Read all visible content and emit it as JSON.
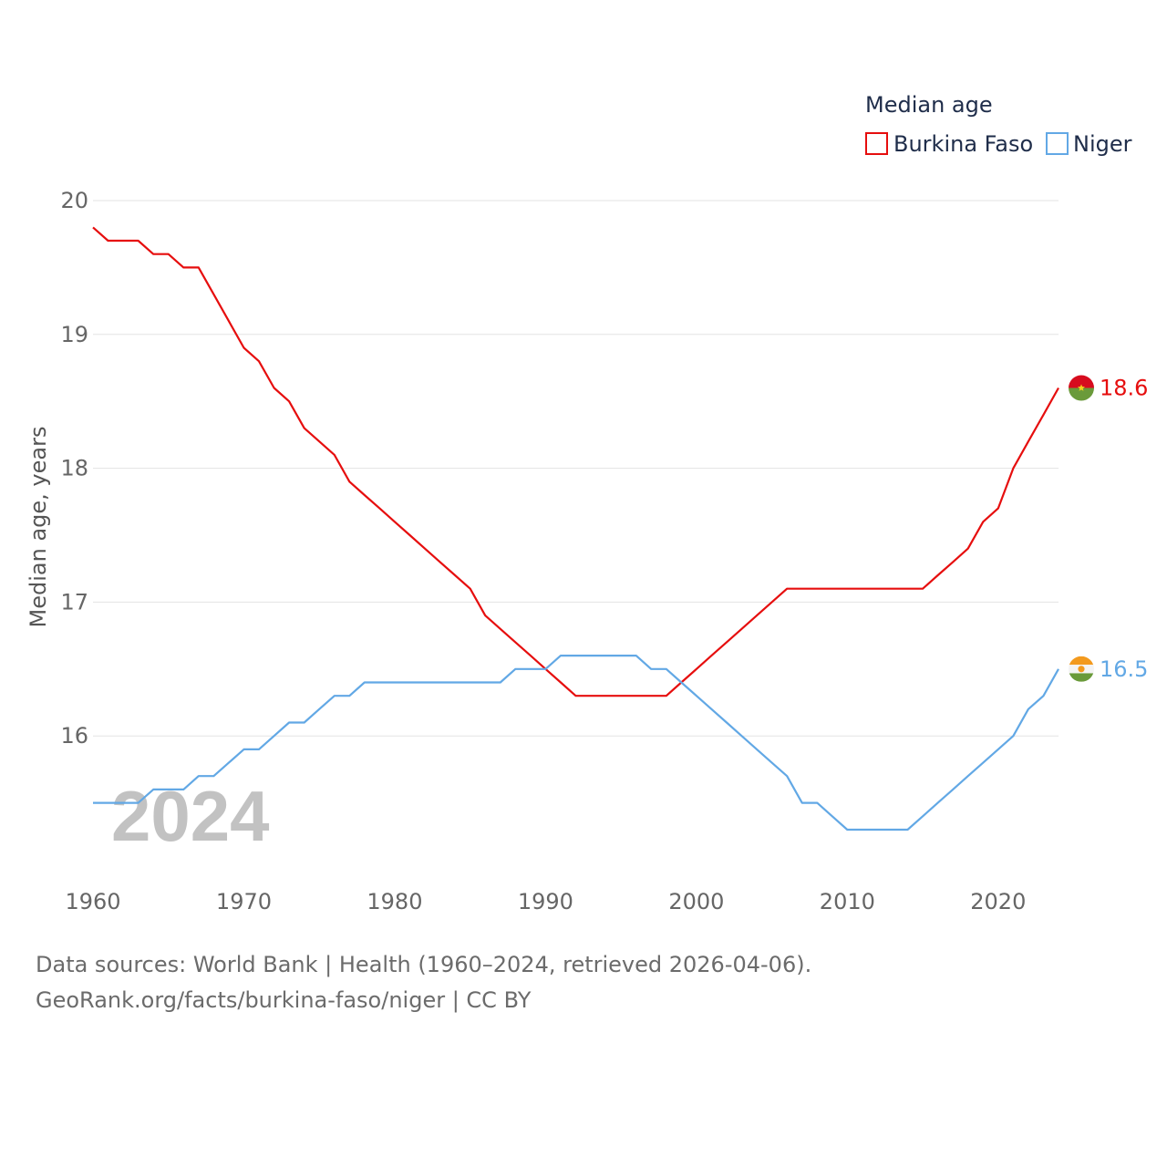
{
  "chart_data": {
    "type": "line",
    "legend_title": "Median age",
    "ylabel": "Median age, years",
    "year_watermark": "2024",
    "x_ticks": [
      "1960",
      "1970",
      "1980",
      "1990",
      "2000",
      "2010",
      "2020"
    ],
    "y_ticks": [
      "16",
      "17",
      "18",
      "19",
      "20"
    ],
    "xlim": [
      1960,
      2024
    ],
    "ylim": [
      15,
      20
    ],
    "series": [
      {
        "name": "Burkina Faso",
        "color": "#e60e0e",
        "end_label": "18.6",
        "flag": "burkina-faso-flag",
        "x": [
          1960,
          1961,
          1962,
          1963,
          1964,
          1965,
          1966,
          1967,
          1968,
          1969,
          1970,
          1971,
          1972,
          1973,
          1974,
          1975,
          1976,
          1977,
          1978,
          1979,
          1980,
          1981,
          1982,
          1983,
          1984,
          1985,
          1986,
          1987,
          1988,
          1989,
          1990,
          1991,
          1992,
          1993,
          1994,
          1995,
          1996,
          1997,
          1998,
          1999,
          2000,
          2001,
          2002,
          2003,
          2004,
          2005,
          2006,
          2007,
          2008,
          2009,
          2010,
          2011,
          2012,
          2013,
          2014,
          2015,
          2016,
          2017,
          2018,
          2019,
          2020,
          2021,
          2022,
          2023,
          2024
        ],
        "values": [
          19.8,
          19.7,
          19.7,
          19.7,
          19.6,
          19.6,
          19.5,
          19.5,
          19.3,
          19.1,
          18.9,
          18.8,
          18.6,
          18.5,
          18.3,
          18.2,
          18.1,
          17.9,
          17.8,
          17.7,
          17.6,
          17.5,
          17.4,
          17.3,
          17.2,
          17.1,
          16.9,
          16.8,
          16.7,
          16.6,
          16.5,
          16.4,
          16.3,
          16.3,
          16.3,
          16.3,
          16.3,
          16.3,
          16.3,
          16.4,
          16.5,
          16.6,
          16.7,
          16.8,
          16.9,
          17.0,
          17.1,
          17.1,
          17.1,
          17.1,
          17.1,
          17.1,
          17.1,
          17.1,
          17.1,
          17.1,
          17.2,
          17.3,
          17.4,
          17.6,
          17.7,
          18.0,
          18.2,
          18.4,
          18.6
        ]
      },
      {
        "name": "Niger",
        "color": "#62a8e5",
        "end_label": "16.5",
        "flag": "niger-flag",
        "x": [
          1960,
          1961,
          1962,
          1963,
          1964,
          1965,
          1966,
          1967,
          1968,
          1969,
          1970,
          1971,
          1972,
          1973,
          1974,
          1975,
          1976,
          1977,
          1978,
          1979,
          1980,
          1981,
          1982,
          1983,
          1984,
          1985,
          1986,
          1987,
          1988,
          1989,
          1990,
          1991,
          1992,
          1993,
          1994,
          1995,
          1996,
          1997,
          1998,
          1999,
          2000,
          2001,
          2002,
          2003,
          2004,
          2005,
          2006,
          2007,
          2008,
          2009,
          2010,
          2011,
          2012,
          2013,
          2014,
          2015,
          2016,
          2017,
          2018,
          2019,
          2020,
          2021,
          2022,
          2023,
          2024
        ],
        "values": [
          15.5,
          15.5,
          15.5,
          15.5,
          15.6,
          15.6,
          15.6,
          15.7,
          15.7,
          15.8,
          15.9,
          15.9,
          16.0,
          16.1,
          16.1,
          16.2,
          16.3,
          16.3,
          16.4,
          16.4,
          16.4,
          16.4,
          16.4,
          16.4,
          16.4,
          16.4,
          16.4,
          16.4,
          16.5,
          16.5,
          16.5,
          16.6,
          16.6,
          16.6,
          16.6,
          16.6,
          16.6,
          16.5,
          16.5,
          16.4,
          16.3,
          16.2,
          16.1,
          16.0,
          15.9,
          15.8,
          15.7,
          15.5,
          15.5,
          15.4,
          15.3,
          15.3,
          15.3,
          15.3,
          15.3,
          15.4,
          15.5,
          15.6,
          15.7,
          15.8,
          15.9,
          16.0,
          16.2,
          16.3,
          16.5
        ]
      }
    ]
  },
  "footer": {
    "line1": "Data sources: World Bank | Health (1960–2024, retrieved 2026-04-06).",
    "line2": "GeoRank.org/facts/burkina-faso/niger | CC BY"
  }
}
